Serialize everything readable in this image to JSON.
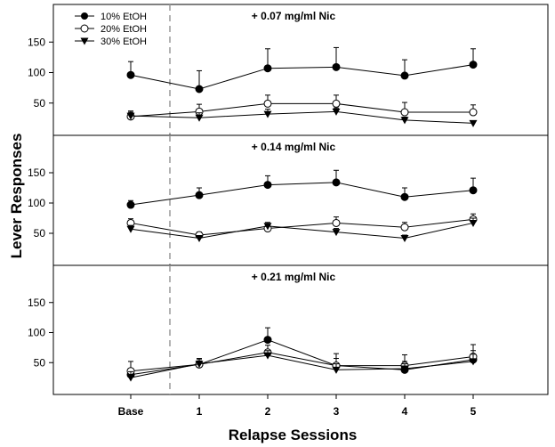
{
  "chart_data": {
    "type": "line",
    "xlabel": "Relapse Sessions",
    "ylabel": "Lever Responses",
    "categories": [
      "Base",
      "1",
      "2",
      "3",
      "4",
      "5"
    ],
    "ylim": [
      0,
      200
    ],
    "yticks": [
      50,
      100,
      150
    ],
    "baseline_divider": "dashed vertical line between Base and 1",
    "grid": false,
    "legend": {
      "placement": "top-left",
      "entries": [
        {
          "name": "10% EtOH",
          "marker": "filled-circle"
        },
        {
          "name": "20% EtOH",
          "marker": "open-circle"
        },
        {
          "name": "30% EtOH",
          "marker": "filled-triangle-down"
        }
      ]
    },
    "panels": [
      {
        "title": "+ 0.07 mg/ml Nic",
        "series": [
          {
            "name": "10% EtOH",
            "marker": "filled-circle",
            "values": [
              96,
              73,
              107,
              109,
              95,
              113
            ],
            "errors": [
              22,
              30,
              32,
              32,
              26,
              26
            ]
          },
          {
            "name": "20% EtOH",
            "marker": "open-circle",
            "values": [
              28,
              36,
              49,
              49,
              35,
              35
            ],
            "errors": [
              9,
              12,
              14,
              14,
              16,
              12
            ]
          },
          {
            "name": "30% EtOH",
            "marker": "filled-triangle-down",
            "values": [
              29,
              26,
              32,
              36,
              22,
              17
            ],
            "errors": [
              6,
              8,
              8,
              6,
              5,
              4
            ]
          }
        ]
      },
      {
        "title": "+ 0.14 mg/ml Nic",
        "series": [
          {
            "name": "10% EtOH",
            "marker": "filled-circle",
            "values": [
              97,
              113,
              130,
              134,
              110,
              121
            ],
            "errors": [
              7,
              12,
              15,
              20,
              15,
              20
            ]
          },
          {
            "name": "20% EtOH",
            "marker": "open-circle",
            "values": [
              67,
              47,
              58,
              67,
              60,
              73
            ],
            "errors": [
              7,
              5,
              6,
              10,
              8,
              9
            ]
          },
          {
            "name": "30% EtOH",
            "marker": "filled-triangle-down",
            "values": [
              57,
              42,
              62,
              52,
              42,
              67
            ],
            "errors": [
              6,
              4,
              6,
              6,
              5,
              8
            ]
          }
        ]
      },
      {
        "title": "+ 0.21 mg/ml Nic",
        "series": [
          {
            "name": "10% EtOH",
            "marker": "filled-circle",
            "values": [
              30,
              47,
              88,
              45,
              38,
              55
            ],
            "errors": [
              10,
              10,
              20,
              12,
              14,
              15
            ]
          },
          {
            "name": "20% EtOH",
            "marker": "open-circle",
            "values": [
              36,
              47,
              67,
              45,
              45,
              60
            ],
            "errors": [
              16,
              6,
              12,
              20,
              18,
              20
            ]
          },
          {
            "name": "30% EtOH",
            "marker": "filled-triangle-down",
            "values": [
              25,
              48,
              62,
              38,
              40,
              52
            ],
            "errors": [
              10,
              8,
              8,
              10,
              8,
              12
            ]
          }
        ]
      }
    ]
  }
}
